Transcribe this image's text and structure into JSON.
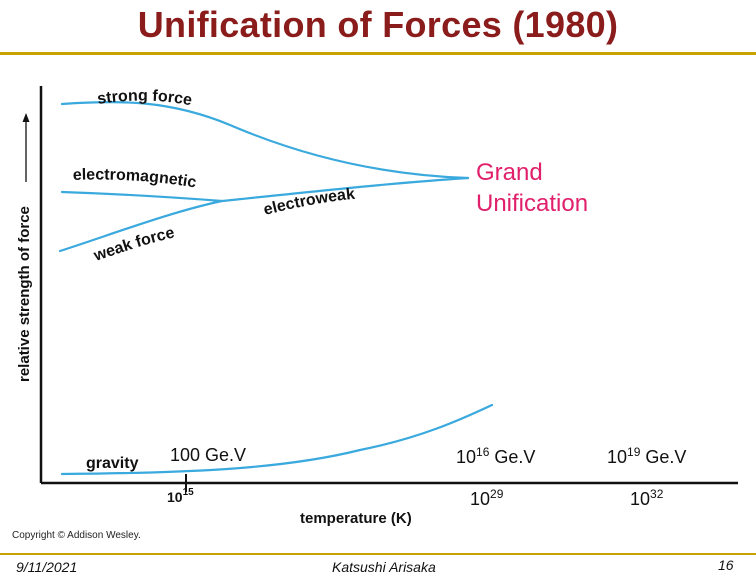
{
  "slide": {
    "title": "Unification of Forces (1980)",
    "footer": {
      "date": "9/11/2021",
      "author": "Katsushi Arisaka",
      "page": "16"
    },
    "copyright": "Copyright © Addison Wesley."
  },
  "diagram": {
    "y_axis_label": "relative strength of force",
    "x_axis_label": "temperature (K)",
    "x_tick_base": "10",
    "x_tick_exp": "15",
    "curve_labels": {
      "strong": "strong force",
      "em": "electromagnetic",
      "electroweak": "electroweak",
      "weak": "weak force",
      "gravity": "gravity"
    },
    "grand_line1": "Grand",
    "grand_line2": "Unification",
    "energy_labels": [
      {
        "text": "100 Ge.V"
      },
      {
        "base": "10",
        "exp": "16",
        "unit": " Ge.V"
      },
      {
        "base": "10",
        "exp": "19",
        "unit": " Ge.V"
      }
    ],
    "temperature_labels": [
      {
        "base": "10",
        "exp": "29"
      },
      {
        "base": "10",
        "exp": "32"
      }
    ],
    "colors": {
      "curves": "#3aa9dd",
      "axes": "#111111",
      "grand": "#e0206a",
      "title": "#8b1c1c",
      "rules": "#c8a200"
    }
  }
}
